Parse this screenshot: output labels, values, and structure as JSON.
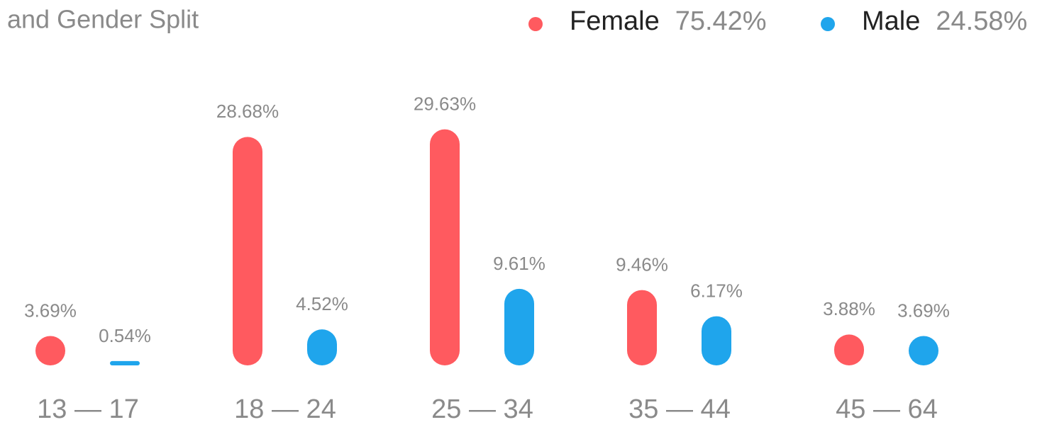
{
  "chart_data": {
    "type": "bar",
    "title": "and Gender Split",
    "categories": [
      "13 — 17",
      "18 — 24",
      "25 — 34",
      "35 — 44",
      "45 — 64"
    ],
    "series": [
      {
        "name": "Female",
        "color": "#ff5a5f",
        "total": 75.42,
        "total_label": "75.42%",
        "values": [
          3.69,
          28.68,
          29.63,
          9.46,
          3.88
        ],
        "value_labels": [
          "3.69%",
          "28.68%",
          "29.63%",
          "9.46%",
          "3.88%"
        ]
      },
      {
        "name": "Male",
        "color": "#1fa5ec",
        "total": 24.58,
        "total_label": "24.58%",
        "values": [
          0.54,
          4.52,
          9.61,
          6.17,
          3.69
        ],
        "value_labels": [
          "0.54%",
          "4.52%",
          "9.61%",
          "6.17%",
          "3.69%"
        ]
      }
    ]
  }
}
